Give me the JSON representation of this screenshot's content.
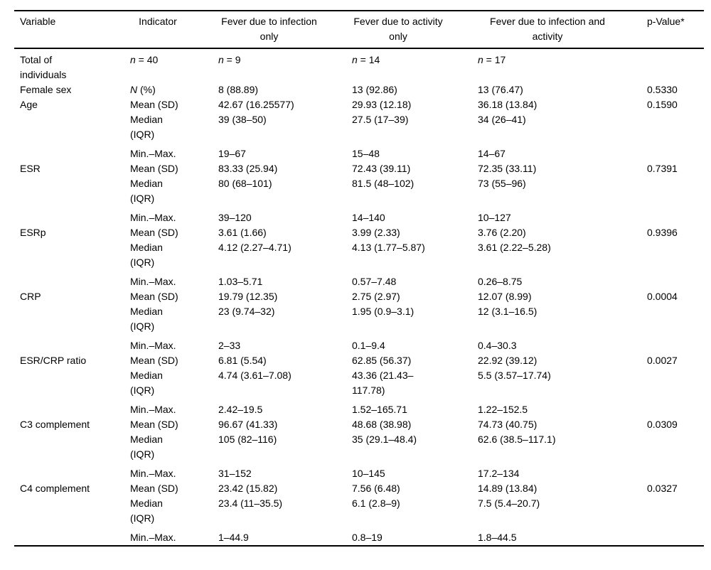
{
  "table": {
    "columns": [
      "Variable",
      "Indicator",
      "Fever due to infection only",
      "Fever due to activity only",
      "Fever due to infection and activity",
      "p-Value*"
    ],
    "rows": [
      {
        "style": "first",
        "cells": [
          "Total of individuals",
          {
            "i": "n",
            "t": " = 40"
          },
          {
            "i": "n",
            "t": " = 9"
          },
          {
            "i": "n",
            "t": " = 14"
          },
          {
            "i": "n",
            "t": " = 17"
          },
          ""
        ]
      },
      {
        "style": "",
        "cells": [
          "Female sex",
          {
            "i": "N",
            "t": " (%)"
          },
          "8 (88.89)",
          "13 (92.86)",
          "13 (76.47)",
          "0.5330"
        ]
      },
      {
        "style": "",
        "cells": [
          "Age",
          "Mean (SD)",
          "42.67 (16.25577)",
          "29.93 (12.18)",
          "36.18 (13.84)",
          "0.1590"
        ]
      },
      {
        "style": "median",
        "cells": [
          "",
          "Median (IQR)",
          "39 (38–50)",
          "27.5 (17–39)",
          "34 (26–41)",
          ""
        ]
      },
      {
        "style": "",
        "cells": [
          "",
          "Min.–Max.",
          "19–67",
          "15–48",
          "14–67",
          ""
        ]
      },
      {
        "style": "",
        "cells": [
          "ESR",
          "Mean (SD)",
          "83.33 (25.94)",
          "72.43 (39.11)",
          "72.35 (33.11)",
          "0.7391"
        ]
      },
      {
        "style": "median",
        "cells": [
          "",
          "Median (IQR)",
          "80 (68–101)",
          "81.5 (48–102)",
          "73 (55–96)",
          ""
        ]
      },
      {
        "style": "",
        "cells": [
          "",
          "Min.–Max.",
          "39–120",
          "14–140",
          "10–127",
          ""
        ]
      },
      {
        "style": "",
        "cells": [
          "ESRp",
          "Mean (SD)",
          "3.61 (1.66)",
          "3.99 (2.33)",
          "3.76 (2.20)",
          "0.9396"
        ]
      },
      {
        "style": "median",
        "cells": [
          "",
          "Median (IQR)",
          "4.12 (2.27–4.71)",
          "4.13 (1.77–5.87)",
          "3.61 (2.22–5.28)",
          ""
        ]
      },
      {
        "style": "",
        "cells": [
          "",
          "Min.–Max.",
          "1.03–5.71",
          "0.57–7.48",
          "0.26–8.75",
          ""
        ]
      },
      {
        "style": "",
        "cells": [
          "CRP",
          "Mean (SD)",
          "19.79 (12.35)",
          "2.75 (2.97)",
          "12.07 (8.99)",
          "0.0004"
        ]
      },
      {
        "style": "median",
        "cells": [
          "",
          "Median (IQR)",
          "23 (9.74–32)",
          "1.95 (0.9–3.1)",
          "12 (3.1–16.5)",
          ""
        ]
      },
      {
        "style": "",
        "cells": [
          "",
          "Min.–Max.",
          "2–33",
          "0.1–9.4",
          "0.4–30.3",
          ""
        ]
      },
      {
        "style": "",
        "cells": [
          "ESR/CRP ratio",
          "Mean (SD)",
          "6.81 (5.54)",
          "62.85 (56.37)",
          "22.92 (39.12)",
          "0.0027"
        ]
      },
      {
        "style": "median",
        "cells": [
          "",
          "Median (IQR)",
          "4.74 (3.61–7.08)",
          "43.36 (21.43–117.78)",
          "5.5 (3.57–17.74)",
          ""
        ]
      },
      {
        "style": "",
        "cells": [
          "",
          "Min.–Max.",
          "2.42–19.5",
          "1.52–165.71",
          "1.22–152.5",
          ""
        ]
      },
      {
        "style": "",
        "cells": [
          "C3 complement",
          "Mean (SD)",
          "96.67 (41.33)",
          "48.68 (38.98)",
          "74.73 (40.75)",
          "0.0309"
        ]
      },
      {
        "style": "median",
        "cells": [
          "",
          "Median (IQR)",
          "105 (82–116)",
          "35 (29.1–48.4)",
          "62.6 (38.5–117.1)",
          ""
        ]
      },
      {
        "style": "",
        "cells": [
          "",
          "Min.–Max.",
          "31–152",
          "10–145",
          "17.2–134",
          ""
        ]
      },
      {
        "style": "",
        "cells": [
          "C4 complement",
          "Mean (SD)",
          "23.42 (15.82)",
          "7.56 (6.48)",
          "14.89 (13.84)",
          "0.0327"
        ]
      },
      {
        "style": "median",
        "cells": [
          "",
          "Median (IQR)",
          "23.4 (11–35.5)",
          "6.1 (2.8–9)",
          "7.5 (5.4–20.7)",
          ""
        ]
      },
      {
        "style": "",
        "cells": [
          "",
          "Min.–Max.",
          "1–44.9",
          "0.8–19",
          "1.8–44.5",
          ""
        ]
      }
    ]
  }
}
